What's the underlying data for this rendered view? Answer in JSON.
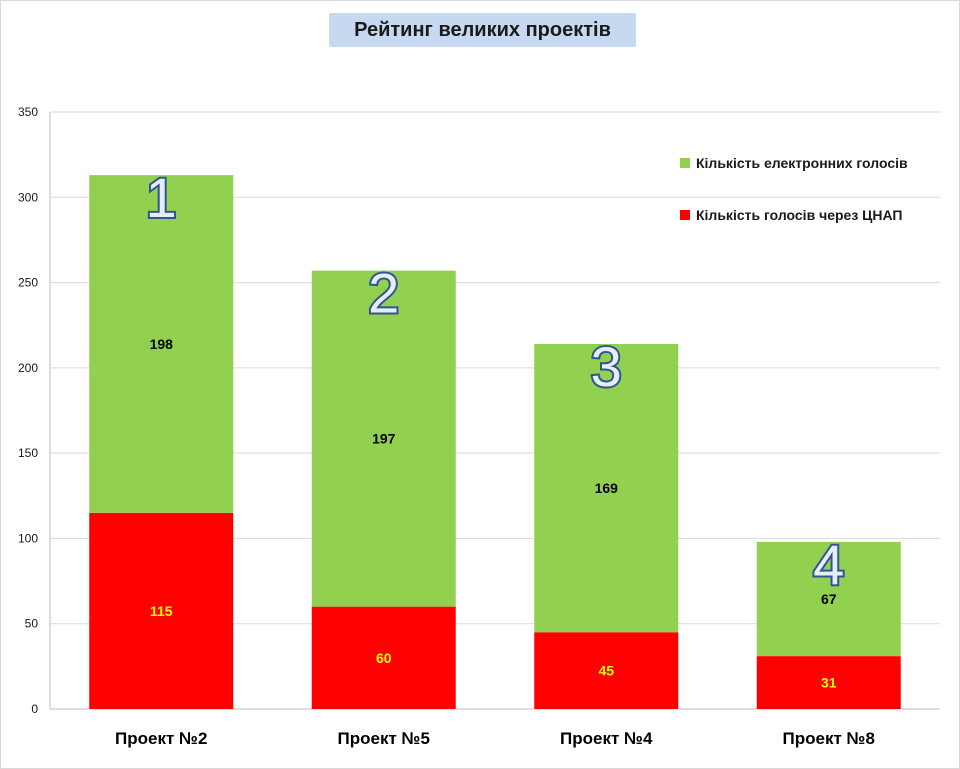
{
  "chart_data": {
    "type": "bar",
    "stacked": true,
    "title": "Рейтинг великих проектів",
    "categories": [
      "Проект №2",
      "Проект №5",
      "Проект №4",
      "Проект №8"
    ],
    "series": [
      {
        "name": "Кількість голосів через ЦНАП",
        "values": [
          115,
          60,
          45,
          31
        ],
        "color": "#ff0000",
        "label_color": "#ffff00"
      },
      {
        "name": "Кількість електронних голосів",
        "values": [
          198,
          197,
          169,
          67
        ],
        "color": "#92d050",
        "label_color": "#000000"
      }
    ],
    "rank_labels": [
      "1",
      "2",
      "3",
      "4"
    ],
    "ylim": [
      0,
      350
    ],
    "yticks": [
      0,
      50,
      100,
      150,
      200,
      250,
      300,
      350
    ],
    "grid": true,
    "legend": "top-right",
    "legend_order": [
      1,
      0
    ]
  }
}
